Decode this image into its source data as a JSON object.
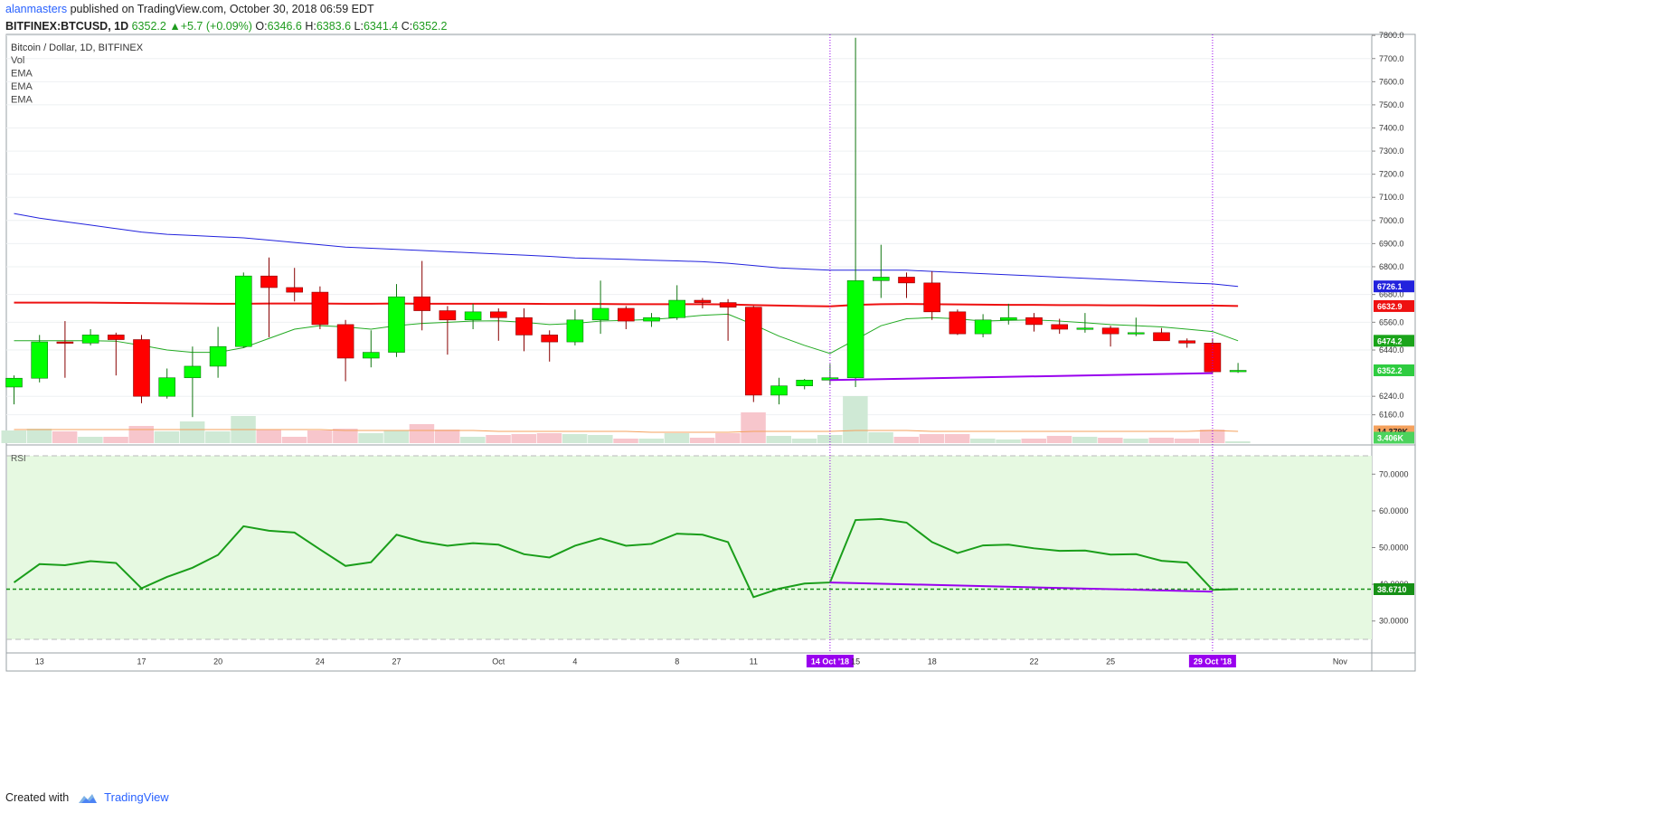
{
  "header": {
    "author": "alanmasters",
    "published_text": "published on TradingView.com, October 30, 2018 06:59 EDT",
    "symbol": "BITFINEX:BTCUSD, 1D",
    "last": "6352.2",
    "change": "+5.7 (+0.09%)",
    "o_label": "O:",
    "o_value": "6346.6",
    "h_label": "H:",
    "h_value": "6383.6",
    "l_label": "L:",
    "l_value": "6341.4",
    "c_label": "C:",
    "c_value": "6352.2"
  },
  "footer": {
    "created_with": "Created with",
    "brand": "TradingView"
  },
  "colors": {
    "up": "#00ff00",
    "down": "#ff0000",
    "ema_long": "#2222dd",
    "ema_mid": "#ee1111",
    "ema_short": "#22aa22",
    "rsi": "#1a9e1a",
    "trendline": "#9900ee",
    "vol_up": "#cfe9d5",
    "vol_down": "#f7c6cc"
  },
  "chart_data": [
    {
      "type": "candlestick",
      "title": "Bitcoin / Dollar, 1D, BITFINEX",
      "legend": [
        "Vol",
        "EMA",
        "EMA",
        "EMA"
      ],
      "y_ticks": [
        "7800.0",
        "7700.0",
        "7600.0",
        "7500.0",
        "7400.0",
        "7300.0",
        "7200.0",
        "7100.0",
        "7000.0",
        "6900.0",
        "6800.0",
        "6680.0",
        "6560.0",
        "6440.0",
        "6240.0",
        "6160.0"
      ],
      "ylim": [
        6100,
        7830
      ],
      "x_tick_labels": [
        "13",
        "17",
        "20",
        "24",
        "27",
        "Oct",
        "4",
        "8",
        "11",
        "15",
        "18",
        "22",
        "25",
        "Nov"
      ],
      "dates": [
        "Sep 12",
        "Sep 13",
        "Sep 14",
        "Sep 15",
        "Sep 16",
        "Sep 17",
        "Sep 18",
        "Sep 19",
        "Sep 20",
        "Sep 21",
        "Sep 22",
        "Sep 23",
        "Sep 24",
        "Sep 25",
        "Sep 26",
        "Sep 27",
        "Sep 28",
        "Sep 29",
        "Sep 30",
        "Oct 1",
        "Oct 2",
        "Oct 3",
        "Oct 4",
        "Oct 5",
        "Oct 6",
        "Oct 7",
        "Oct 8",
        "Oct 9",
        "Oct 10",
        "Oct 11",
        "Oct 12",
        "Oct 13",
        "Oct 14",
        "Oct 15",
        "Oct 16",
        "Oct 17",
        "Oct 18",
        "Oct 19",
        "Oct 20",
        "Oct 21",
        "Oct 22",
        "Oct 23",
        "Oct 24",
        "Oct 25",
        "Oct 26",
        "Oct 27",
        "Oct 28",
        "Oct 29",
        "Oct 30"
      ],
      "candles": [
        {
          "o": 6280,
          "h": 6330,
          "l": 6205,
          "c": 6318
        },
        {
          "o": 6318,
          "h": 6505,
          "l": 6300,
          "c": 6475
        },
        {
          "o": 6475,
          "h": 6565,
          "l": 6320,
          "c": 6470
        },
        {
          "o": 6470,
          "h": 6530,
          "l": 6460,
          "c": 6505
        },
        {
          "o": 6505,
          "h": 6515,
          "l": 6330,
          "c": 6485
        },
        {
          "o": 6485,
          "h": 6505,
          "l": 6210,
          "c": 6240
        },
        {
          "o": 6240,
          "h": 6360,
          "l": 6230,
          "c": 6320
        },
        {
          "o": 6320,
          "h": 6455,
          "l": 6150,
          "c": 6370
        },
        {
          "o": 6370,
          "h": 6540,
          "l": 6320,
          "c": 6455
        },
        {
          "o": 6455,
          "h": 6775,
          "l": 6450,
          "c": 6760
        },
        {
          "o": 6760,
          "h": 6840,
          "l": 6495,
          "c": 6710
        },
        {
          "o": 6710,
          "h": 6795,
          "l": 6650,
          "c": 6690
        },
        {
          "o": 6690,
          "h": 6715,
          "l": 6530,
          "c": 6550
        },
        {
          "o": 6550,
          "h": 6570,
          "l": 6305,
          "c": 6405
        },
        {
          "o": 6405,
          "h": 6525,
          "l": 6365,
          "c": 6430
        },
        {
          "o": 6430,
          "h": 6725,
          "l": 6410,
          "c": 6670
        },
        {
          "o": 6670,
          "h": 6825,
          "l": 6525,
          "c": 6610
        },
        {
          "o": 6610,
          "h": 6630,
          "l": 6420,
          "c": 6570
        },
        {
          "o": 6570,
          "h": 6640,
          "l": 6530,
          "c": 6605
        },
        {
          "o": 6605,
          "h": 6620,
          "l": 6480,
          "c": 6580
        },
        {
          "o": 6580,
          "h": 6620,
          "l": 6435,
          "c": 6505
        },
        {
          "o": 6505,
          "h": 6525,
          "l": 6390,
          "c": 6475
        },
        {
          "o": 6475,
          "h": 6615,
          "l": 6460,
          "c": 6570
        },
        {
          "o": 6570,
          "h": 6740,
          "l": 6510,
          "c": 6620
        },
        {
          "o": 6620,
          "h": 6630,
          "l": 6530,
          "c": 6565
        },
        {
          "o": 6565,
          "h": 6600,
          "l": 6540,
          "c": 6580
        },
        {
          "o": 6580,
          "h": 6720,
          "l": 6570,
          "c": 6655
        },
        {
          "o": 6655,
          "h": 6665,
          "l": 6620,
          "c": 6645
        },
        {
          "o": 6645,
          "h": 6660,
          "l": 6480,
          "c": 6625
        },
        {
          "o": 6625,
          "h": 6630,
          "l": 6215,
          "c": 6245
        },
        {
          "o": 6245,
          "h": 6320,
          "l": 6205,
          "c": 6285
        },
        {
          "o": 6285,
          "h": 6315,
          "l": 6270,
          "c": 6310
        },
        {
          "o": 6310,
          "h": 6380,
          "l": 6290,
          "c": 6320
        },
        {
          "o": 6320,
          "h": 7790,
          "l": 6280,
          "c": 6740
        },
        {
          "o": 6740,
          "h": 6895,
          "l": 6665,
          "c": 6755
        },
        {
          "o": 6755,
          "h": 6775,
          "l": 6665,
          "c": 6730
        },
        {
          "o": 6730,
          "h": 6780,
          "l": 6570,
          "c": 6605
        },
        {
          "o": 6605,
          "h": 6615,
          "l": 6505,
          "c": 6510
        },
        {
          "o": 6510,
          "h": 6595,
          "l": 6495,
          "c": 6570
        },
        {
          "o": 6570,
          "h": 6640,
          "l": 6550,
          "c": 6580
        },
        {
          "o": 6580,
          "h": 6600,
          "l": 6520,
          "c": 6550
        },
        {
          "o": 6550,
          "h": 6575,
          "l": 6510,
          "c": 6530
        },
        {
          "o": 6530,
          "h": 6600,
          "l": 6515,
          "c": 6535
        },
        {
          "o": 6535,
          "h": 6545,
          "l": 6455,
          "c": 6510
        },
        {
          "o": 6510,
          "h": 6580,
          "l": 6500,
          "c": 6515
        },
        {
          "o": 6515,
          "h": 6535,
          "l": 6480,
          "c": 6480
        },
        {
          "o": 6480,
          "h": 6490,
          "l": 6450,
          "c": 6470
        },
        {
          "o": 6470,
          "h": 6490,
          "l": 6340,
          "c": 6346
        },
        {
          "o": 6346,
          "h": 6384,
          "l": 6341,
          "c": 6352
        }
      ],
      "volume": [
        14,
        16,
        13,
        7,
        7,
        19,
        13,
        24,
        13,
        30,
        15,
        7,
        14,
        16,
        11,
        14,
        21,
        15,
        7,
        9,
        10,
        11,
        10,
        9,
        5,
        5,
        11,
        6,
        11,
        34,
        8,
        5,
        9,
        52,
        12,
        7,
        10,
        10,
        5,
        4,
        5,
        8,
        7,
        6,
        5,
        6,
        5,
        15,
        2
      ],
      "ema_long": [
        7030,
        7010,
        6995,
        6980,
        6965,
        6950,
        6940,
        6935,
        6930,
        6925,
        6915,
        6905,
        6895,
        6885,
        6880,
        6875,
        6870,
        6865,
        6860,
        6855,
        6850,
        6845,
        6838,
        6835,
        6832,
        6828,
        6825,
        6822,
        6815,
        6805,
        6795,
        6790,
        6785,
        6785,
        6785,
        6785,
        6780,
        6775,
        6770,
        6765,
        6760,
        6755,
        6750,
        6745,
        6740,
        6735,
        6730,
        6726,
        6715
      ],
      "ema_mid": [
        6645,
        6645,
        6645,
        6645,
        6644,
        6643,
        6642,
        6641,
        6640,
        6640,
        6641,
        6641,
        6641,
        6640,
        6640,
        6641,
        6640,
        6640,
        6640,
        6640,
        6640,
        6639,
        6639,
        6639,
        6638,
        6638,
        6638,
        6638,
        6637,
        6634,
        6632,
        6630,
        6629,
        6635,
        6638,
        6639,
        6638,
        6637,
        6636,
        6635,
        6635,
        6634,
        6634,
        6633,
        6633,
        6632,
        6632,
        6632,
        6630
      ],
      "ema_short": [
        6480,
        6480,
        6480,
        6480,
        6478,
        6460,
        6440,
        6430,
        6430,
        6450,
        6490,
        6530,
        6545,
        6540,
        6530,
        6545,
        6555,
        6560,
        6565,
        6566,
        6560,
        6550,
        6555,
        6565,
        6568,
        6572,
        6580,
        6590,
        6595,
        6550,
        6500,
        6460,
        6425,
        6485,
        6545,
        6575,
        6580,
        6575,
        6565,
        6568,
        6570,
        6565,
        6558,
        6550,
        6545,
        6540,
        6530,
        6520,
        6480
      ],
      "ema_vol": [
        15,
        15,
        15,
        15,
        15,
        15,
        15,
        15,
        15,
        15,
        15,
        15,
        15,
        14,
        14,
        14,
        14,
        14,
        14,
        13,
        13,
        13,
        13,
        13,
        13,
        12,
        12,
        12,
        12,
        13,
        13,
        13,
        13,
        14,
        14,
        14,
        13,
        13,
        13,
        13,
        13,
        13,
        13,
        13,
        13,
        13,
        13,
        14,
        13
      ],
      "price_labels": {
        "ema_long": "6726.1",
        "ema_mid": "6632.9",
        "ema_short": "6474.2",
        "last": "6352.2",
        "vol_ema": "14.379K",
        "vol": "3.406K"
      },
      "trendline": {
        "start": {
          "date": "Oct 14",
          "price": 6310
        },
        "end": {
          "date": "Oct 29",
          "price": 6340
        }
      },
      "markers": [
        {
          "date": "Oct 14",
          "label": "14 Oct '18"
        },
        {
          "date": "Oct 29",
          "label": "29 Oct '18"
        }
      ]
    },
    {
      "type": "line",
      "title": "RSI",
      "y_ticks": [
        "70.0000",
        "60.0000",
        "50.0000",
        "40.0000",
        "30.0000"
      ],
      "ylim": [
        25,
        75
      ],
      "overbought": 75,
      "oversold": 25,
      "values": [
        40.5,
        45.5,
        45.2,
        46.3,
        45.8,
        38.9,
        42.0,
        44.5,
        48.0,
        55.8,
        54.6,
        54.1,
        49.5,
        45.0,
        46.0,
        53.5,
        51.6,
        50.5,
        51.2,
        50.8,
        48.2,
        47.3,
        50.5,
        52.5,
        50.5,
        51.0,
        53.8,
        53.5,
        51.5,
        36.5,
        38.8,
        40.2,
        40.5,
        57.5,
        57.8,
        56.8,
        51.5,
        48.5,
        50.6,
        50.8,
        49.8,
        49.1,
        49.2,
        48.1,
        48.2,
        46.4,
        45.9,
        38.5,
        38.7
      ],
      "last_label": "38.6710",
      "hline": 38.671,
      "trendline": {
        "start": {
          "date": "Oct 14",
          "value": 40.5
        },
        "end": {
          "date": "Oct 29",
          "value": 38.0
        }
      }
    }
  ]
}
